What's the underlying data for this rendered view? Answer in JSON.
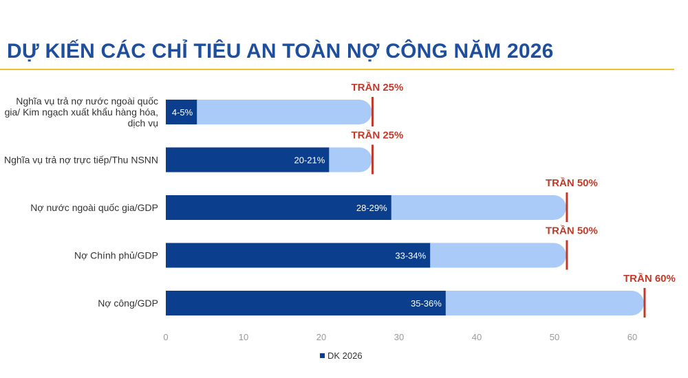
{
  "page_title": "DỰ KIẾN CÁC CHỈ TIÊU AN TOÀN NỢ CÔNG NĂM 2026",
  "colors": {
    "title": "#1f4e9c",
    "rule": "#f2c12e",
    "bar_value": "#0b3e8c",
    "bar_cap": "#aacbf7",
    "cap_line": "#c0392b"
  },
  "chart_data": {
    "type": "bar",
    "orientation": "horizontal",
    "title": "DỰ KIẾN CÁC CHỈ TIÊU AN TOÀN NỢ CÔNG NĂM 2026",
    "categories": [
      [
        "Nghĩa vụ trả nợ nước ngoài quốc",
        "gia/ Kim ngạch xuất khẩu hàng hóa,",
        "dịch vụ"
      ],
      [
        "Nghĩa vụ trả nợ trực tiếp/Thu NSNN"
      ],
      [
        "Nợ nước ngoài quốc gia/GDP"
      ],
      [
        "Nợ Chính phủ/GDP"
      ],
      [
        "Nợ công/GDP"
      ]
    ],
    "series": [
      {
        "name": "DK 2026",
        "values": [
          4,
          21,
          29,
          34,
          36
        ],
        "labels": [
          "4-5%",
          "20-21%",
          "28-29%",
          "33-34%",
          "35-36%"
        ]
      }
    ],
    "caps": [
      26.5,
      26.5,
      51.5,
      51.5,
      61.5
    ],
    "cap_labels": [
      "TRẦN 25%",
      "TRẦN 25%",
      "TRẦN 50%",
      "TRẦN 50%",
      "TRẦN 60%"
    ],
    "xticks": [
      0,
      10,
      20,
      30,
      40,
      50,
      60
    ],
    "xlim": [
      0,
      70
    ],
    "legend": {
      "position": "bottom",
      "label": "DK 2026"
    }
  }
}
